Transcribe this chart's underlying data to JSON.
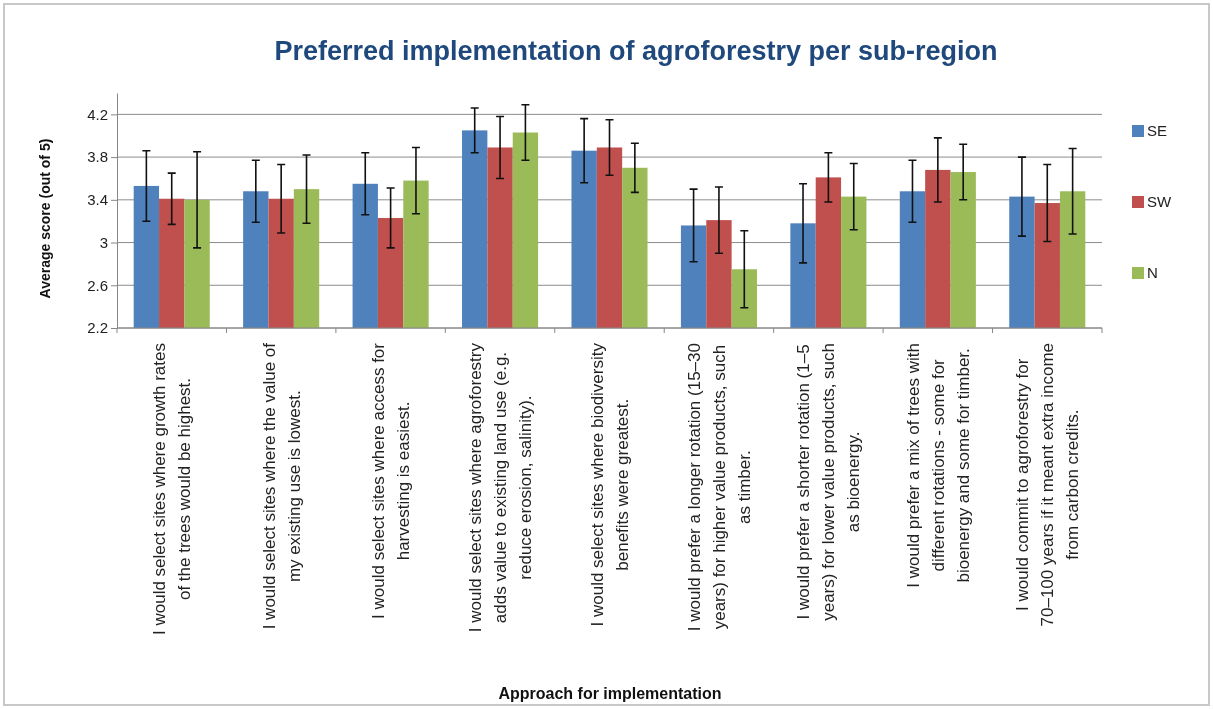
{
  "chart_data": {
    "type": "bar",
    "title": "Preferred implementation of agroforestry per sub-region",
    "xlabel": "Approach for implementation",
    "ylabel": "Average score (out of 5)",
    "categories": [
      "I would select sites where growth rates\nof the trees would be highest.",
      "I would select sites where the value of\nmy existing use is lowest.",
      "I would select sites where access for\nharvesting is easiest.",
      "I would select sites where agroforestry\nadds value to existing land use (e.g.\nreduce erosion, salinity).",
      "I would select sites where biodiversity\nbenefits were greatest.",
      "I would prefer a longer rotation (15–30\nyears) for higher value products, such\nas timber.",
      "I would prefer a shorter rotation (1–5\nyears) for lower value products, such\nas bioenergy.",
      "I would prefer a mix of trees with\ndifferent rotations - some for\nbioenergy and some for timber.",
      "I would commit to agroforestry for\n70–100 years if it meant extra income\nfrom carbon credits."
    ],
    "series": [
      {
        "name": "SE",
        "color": "#4f81bd",
        "values": [
          3.53,
          3.48,
          3.55,
          4.05,
          3.86,
          3.16,
          3.18,
          3.48,
          3.43
        ],
        "errors": [
          0.33,
          0.29,
          0.29,
          0.21,
          0.3,
          0.34,
          0.37,
          0.29,
          0.37
        ]
      },
      {
        "name": "SW",
        "color": "#c0504d",
        "values": [
          3.41,
          3.41,
          3.23,
          3.89,
          3.89,
          3.21,
          3.61,
          3.68,
          3.37
        ],
        "errors": [
          0.24,
          0.32,
          0.28,
          0.29,
          0.26,
          0.31,
          0.23,
          0.3,
          0.36
        ]
      },
      {
        "name": "N",
        "color": "#9bbb59",
        "values": [
          3.4,
          3.5,
          3.58,
          4.03,
          3.7,
          2.75,
          3.43,
          3.66,
          3.48
        ],
        "errors": [
          0.45,
          0.32,
          0.31,
          0.26,
          0.23,
          0.36,
          0.31,
          0.26,
          0.4
        ]
      }
    ],
    "ylim": [
      2.2,
      4.4
    ],
    "yticks": [
      2.2,
      2.6,
      3,
      3.4,
      3.8,
      4.2
    ],
    "grid": "y",
    "legend": "right"
  }
}
